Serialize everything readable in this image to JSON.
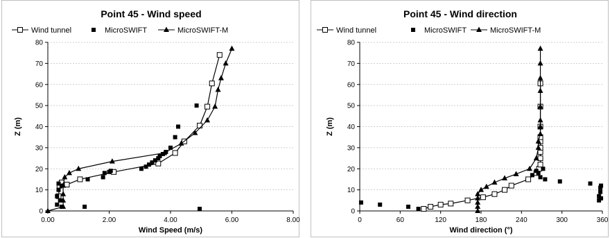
{
  "chart_data": [
    {
      "type": "line",
      "title": "Point 45 - Wind speed",
      "xlabel": "Wind Speed (m/s)",
      "ylabel": "Z (m)",
      "xlim": [
        0,
        8
      ],
      "ylim": [
        0,
        80
      ],
      "xticks": [
        0,
        2,
        4,
        6,
        8
      ],
      "xtick_labels": [
        "0.00",
        "2.00",
        "4.00",
        "6.00",
        "8.00"
      ],
      "yticks": [
        0,
        10,
        20,
        30,
        40,
        50,
        60,
        70,
        80
      ],
      "grid": "horizontal",
      "legend_position": "top",
      "series": [
        {
          "name": "Wind tunnel",
          "marker": "open-square",
          "line": true,
          "x": [
            0.35,
            0.38,
            0.45,
            0.62,
            1.05,
            2.15,
            3.6,
            4.15,
            4.45,
            4.95,
            5.2,
            5.35,
            5.6
          ],
          "y": [
            7,
            12,
            13.5,
            12.5,
            15,
            18.5,
            22.5,
            27.5,
            33,
            40.5,
            49.5,
            60.5,
            74
          ]
        },
        {
          "name": "MicroSWIFT",
          "marker": "filled-square",
          "line": false,
          "x": [
            0.3,
            0.3,
            0.35,
            0.35,
            0.4,
            0.45,
            0.45,
            1.2,
            1.3,
            1.8,
            1.85,
            2.0,
            2.05,
            3.05,
            3.2,
            3.3,
            3.4,
            3.5,
            3.6,
            3.65,
            3.75,
            3.85,
            4.0,
            4.15,
            4.25,
            4.85,
            4.95
          ],
          "y": [
            3,
            7,
            10,
            13,
            5,
            12,
            2,
            2,
            15,
            16,
            18,
            18.5,
            19,
            20,
            21,
            22,
            23,
            24,
            25,
            26,
            27,
            28,
            30,
            35,
            40,
            50,
            1
          ]
        },
        {
          "name": "MicroSWIFT-M",
          "marker": "filled-triangle",
          "line": true,
          "x": [
            0.0,
            0.5,
            0.5,
            0.5,
            0.5,
            0.55,
            0.7,
            1.0,
            2.1,
            3.8,
            4.35,
            4.8,
            5.2,
            5.45,
            5.55,
            5.65,
            5.8,
            6.0
          ],
          "y": [
            0,
            2,
            5,
            8,
            12,
            16,
            18,
            20,
            23.5,
            27.5,
            32,
            37,
            43,
            49.5,
            57.5,
            63,
            70,
            77
          ]
        }
      ]
    },
    {
      "type": "line",
      "title": "Point 45 - Wind direction",
      "xlabel": "Wind direction (°)",
      "ylabel": "Z (m)",
      "xlim": [
        0,
        360
      ],
      "ylim": [
        0,
        80
      ],
      "xticks": [
        0,
        60,
        120,
        180,
        240,
        300,
        360
      ],
      "xtick_labels": [
        "0",
        "60",
        "120",
        "180",
        "240",
        "300",
        "360"
      ],
      "yticks": [
        0,
        10,
        20,
        30,
        40,
        50,
        60,
        70,
        80
      ],
      "grid": "horizontal",
      "legend_position": "top",
      "series": [
        {
          "name": "Wind tunnel",
          "marker": "open-square",
          "line": true,
          "x": [
            95,
            105,
            120,
            135,
            160,
            183,
            200,
            215,
            225,
            250,
            262,
            266,
            268,
            268,
            268,
            268,
            268,
            268,
            268,
            268,
            268
          ],
          "y": [
            1,
            2,
            3,
            3.5,
            5,
            6.5,
            8,
            10,
            12,
            15,
            18,
            20,
            22,
            25,
            28,
            30,
            33,
            35,
            40,
            49.5,
            60.5
          ]
        },
        {
          "name": "MicroSWIFT",
          "marker": "filled-square",
          "line": false,
          "x": [
            2,
            30,
            72,
            87,
            256,
            262,
            265,
            268,
            272,
            275,
            297,
            342,
            355,
            355,
            357,
            357,
            358,
            358
          ],
          "y": [
            4,
            3,
            2,
            1,
            17,
            19,
            18,
            16,
            20,
            15,
            14,
            13,
            5,
            7,
            9,
            11,
            6,
            12
          ]
        },
        {
          "name": "MicroSWIFT-M",
          "marker": "filled-triangle",
          "line": true,
          "x": [
            175,
            175,
            175,
            175,
            175,
            180,
            188,
            200,
            215,
            232,
            252,
            262,
            265,
            265,
            268,
            268,
            268,
            268,
            268,
            268,
            268,
            268
          ],
          "y": [
            0,
            2,
            4,
            6,
            8,
            10,
            11.5,
            13.5,
            15.5,
            17.5,
            20,
            25,
            30,
            33,
            36.5,
            40,
            43,
            49.5,
            57,
            63,
            70,
            77
          ]
        }
      ]
    }
  ]
}
